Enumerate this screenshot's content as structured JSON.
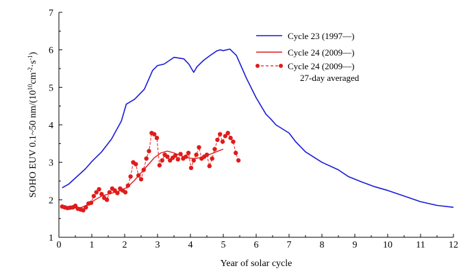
{
  "chart_data": {
    "type": "line",
    "title": "",
    "xlabel": "Year of solar cycle",
    "ylabel": "SOHO EUV 0.1~50 nm/(10^10 cm^-2·s^-1)",
    "ylabel_parts": {
      "prefix": "SOHO EUV 0.1~50 nm/(10",
      "sup1": "10",
      "mid": "cm",
      "sup2": "-2",
      "dot": "·s",
      "sup3": "-1",
      "suffix": ")"
    },
    "xlim": [
      0,
      12
    ],
    "ylim": [
      1,
      7
    ],
    "x_ticks": [
      "0",
      "1",
      "2",
      "3",
      "4",
      "5",
      "6",
      "7",
      "8",
      "9",
      "10",
      "11",
      "12"
    ],
    "y_ticks": [
      "1",
      "2",
      "3",
      "4",
      "5",
      "6",
      "7"
    ],
    "grid": false,
    "legend_position": "top-right",
    "legend": [
      {
        "label": "Cycle 23 (1997—)",
        "color": "#1a1ad6",
        "style": "solid"
      },
      {
        "label": "Cycle 24 (2009—)",
        "color": "#e01b1b",
        "style": "solid"
      },
      {
        "label": "Cycle 24 (2009—)",
        "label2": "27-day averaged",
        "color": "#e01b1b",
        "style": "dashed-marker"
      }
    ],
    "series": [
      {
        "name": "Cycle 23 (1997—)",
        "color": "#1a1ad6",
        "x": [
          0.1,
          0.3,
          0.5,
          0.8,
          1.0,
          1.3,
          1.6,
          1.9,
          2.05,
          2.3,
          2.6,
          2.85,
          3.0,
          3.2,
          3.5,
          3.8,
          3.95,
          4.1,
          4.2,
          4.4,
          4.6,
          4.8,
          4.9,
          5.0,
          5.2,
          5.4,
          5.7,
          6.0,
          6.3,
          6.45,
          6.6,
          7.0,
          7.2,
          7.5,
          8.0,
          8.5,
          8.8,
          9.2,
          9.6,
          10.0,
          10.5,
          11.0,
          11.5,
          12.0
        ],
        "values": [
          2.32,
          2.42,
          2.58,
          2.82,
          3.02,
          3.28,
          3.62,
          4.1,
          4.55,
          4.68,
          4.95,
          5.45,
          5.58,
          5.62,
          5.8,
          5.76,
          5.62,
          5.4,
          5.55,
          5.72,
          5.85,
          5.97,
          6.0,
          5.98,
          6.02,
          5.85,
          5.25,
          4.72,
          4.28,
          4.15,
          4.0,
          3.78,
          3.55,
          3.28,
          3.0,
          2.8,
          2.62,
          2.48,
          2.35,
          2.25,
          2.1,
          1.95,
          1.85,
          1.8
        ]
      },
      {
        "name": "Cycle 24 (2009—)",
        "color": "#e01b1b",
        "x": [
          0.1,
          0.3,
          0.5,
          0.7,
          0.9,
          1.1,
          1.3,
          1.5,
          1.7,
          1.9,
          2.1,
          2.3,
          2.5,
          2.7,
          2.9,
          3.1,
          3.3,
          3.5,
          3.7,
          3.9,
          4.1,
          4.3,
          4.5,
          4.7,
          4.9,
          5.0
        ],
        "values": [
          1.82,
          1.8,
          1.78,
          1.8,
          1.88,
          2.0,
          2.1,
          2.15,
          2.2,
          2.25,
          2.35,
          2.52,
          2.72,
          2.92,
          3.12,
          3.25,
          3.3,
          3.25,
          3.18,
          3.12,
          3.1,
          3.12,
          3.18,
          3.25,
          3.32,
          3.35
        ]
      },
      {
        "name": "Cycle 24 (2009—) 27-day averaged",
        "color": "#e01b1b",
        "x": [
          0.1,
          0.18,
          0.26,
          0.34,
          0.42,
          0.5,
          0.58,
          0.66,
          0.74,
          0.82,
          0.9,
          0.98,
          1.06,
          1.14,
          1.22,
          1.3,
          1.38,
          1.46,
          1.54,
          1.62,
          1.7,
          1.78,
          1.86,
          1.94,
          2.02,
          2.1,
          2.18,
          2.26,
          2.34,
          2.42,
          2.5,
          2.58,
          2.66,
          2.74,
          2.82,
          2.9,
          2.98,
          3.06,
          3.14,
          3.22,
          3.3,
          3.38,
          3.46,
          3.54,
          3.62,
          3.7,
          3.78,
          3.86,
          3.94,
          4.02,
          4.1,
          4.18,
          4.26,
          4.34,
          4.42,
          4.5,
          4.58,
          4.66,
          4.74,
          4.82,
          4.9,
          4.98,
          5.06,
          5.14,
          5.22,
          5.3,
          5.38,
          5.46
        ],
        "values": [
          1.82,
          1.8,
          1.78,
          1.79,
          1.8,
          1.84,
          1.76,
          1.74,
          1.72,
          1.8,
          1.9,
          1.92,
          2.1,
          2.2,
          2.28,
          2.15,
          2.05,
          2.0,
          2.2,
          2.3,
          2.25,
          2.18,
          2.3,
          2.25,
          2.2,
          2.38,
          2.62,
          3.0,
          2.95,
          2.65,
          2.55,
          2.8,
          3.1,
          3.3,
          3.78,
          3.75,
          3.65,
          2.92,
          3.05,
          3.2,
          3.15,
          3.05,
          3.12,
          3.18,
          3.08,
          3.22,
          3.1,
          3.15,
          3.25,
          2.85,
          3.05,
          3.2,
          3.4,
          3.1,
          3.15,
          3.2,
          2.9,
          3.1,
          3.35,
          3.6,
          3.75,
          3.55,
          3.7,
          3.78,
          3.65,
          3.55,
          3.25,
          3.05
        ]
      }
    ]
  }
}
